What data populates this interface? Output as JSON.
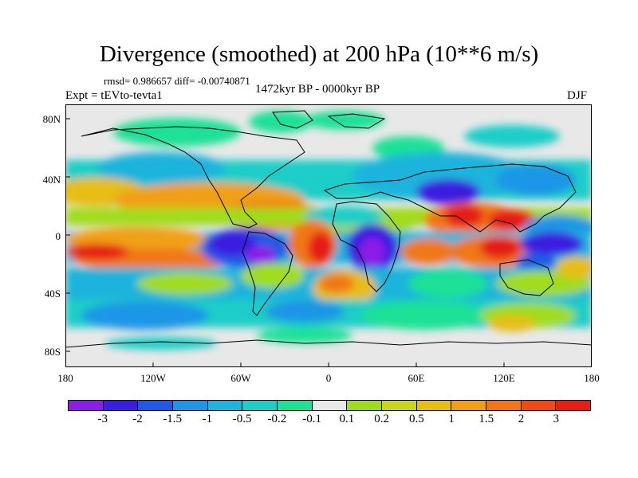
{
  "header": {
    "title": "Divergence (smoothed) at 200 hPa (10**6 m/s)",
    "stats": "rmsd= 0.986657 diff= -0.00740871",
    "experiment": "Expt = tEVto-tevta1",
    "period": "1472kyr BP - 0000kyr BP",
    "season": "DJF"
  },
  "axes": {
    "lat_labels": [
      "80N",
      "40N",
      "0",
      "40S",
      "80S"
    ],
    "lon_labels": [
      "180",
      "120W",
      "60W",
      "0",
      "60E",
      "120E",
      "180"
    ]
  },
  "colorbar": {
    "colors": [
      "#8c1ee8",
      "#3b1ee0",
      "#1e5ae6",
      "#1e96e6",
      "#1eb4dc",
      "#1ecdc8",
      "#1ee196",
      "#e8e8e8",
      "#a0dc1e",
      "#c8d71e",
      "#e6be14",
      "#f0a014",
      "#f07814",
      "#f04b14",
      "#e61e14"
    ],
    "labels": [
      "-3",
      "-2",
      "-1.5",
      "-1",
      "-0.5",
      "-0.2",
      "-0.1",
      "0.1",
      "0.2",
      "0.5",
      "1",
      "1.5",
      "2",
      "3"
    ]
  }
}
